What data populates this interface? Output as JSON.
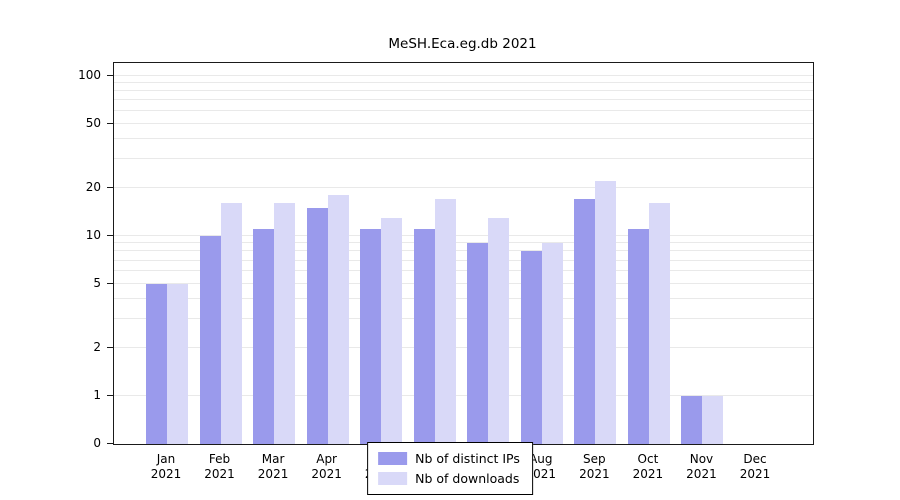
{
  "chart_data": {
    "type": "bar",
    "title": "MeSH.Eca.eg.db 2021",
    "categories": [
      {
        "month": "Jan",
        "year": "2021"
      },
      {
        "month": "Feb",
        "year": "2021"
      },
      {
        "month": "Mar",
        "year": "2021"
      },
      {
        "month": "Apr",
        "year": "2021"
      },
      {
        "month": "May",
        "year": "2021"
      },
      {
        "month": "Jun",
        "year": "2021"
      },
      {
        "month": "Jul",
        "year": "2021"
      },
      {
        "month": "Aug",
        "year": "2021"
      },
      {
        "month": "Sep",
        "year": "2021"
      },
      {
        "month": "Oct",
        "year": "2021"
      },
      {
        "month": "Nov",
        "year": "2021"
      },
      {
        "month": "Dec",
        "year": "2021"
      }
    ],
    "series": [
      {
        "name": "Nb of distinct IPs",
        "color": "#9a9aec",
        "values": [
          5,
          10,
          11,
          15,
          11,
          11,
          9,
          8,
          17,
          11,
          1,
          0
        ]
      },
      {
        "name": "Nb of downloads",
        "color": "#d9d9f8",
        "values": [
          5,
          16,
          16,
          18,
          13,
          17,
          13,
          9,
          22,
          16,
          1,
          0
        ]
      }
    ],
    "yticks": [
      0,
      1,
      2,
      5,
      10,
      20,
      50,
      100
    ],
    "gridlines": [
      1,
      2,
      3,
      4,
      5,
      6,
      7,
      8,
      9,
      10,
      20,
      30,
      40,
      50,
      60,
      70,
      80,
      90,
      100
    ],
    "scale": "log",
    "ylim": [
      0,
      120
    ],
    "xlabel": "",
    "ylabel": "",
    "grid": true,
    "legend_position": "bottom-center"
  }
}
